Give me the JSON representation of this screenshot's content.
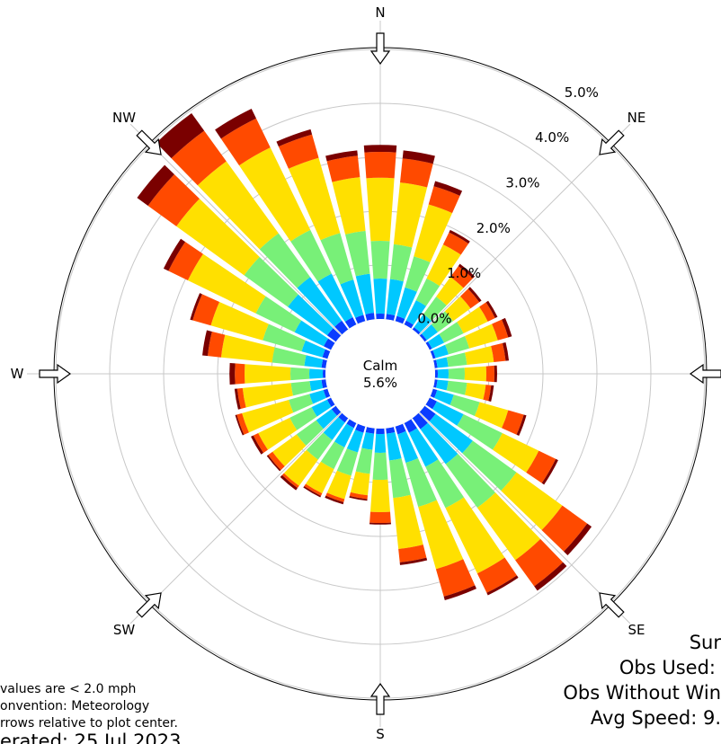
{
  "colors": {
    "bin0": "#0a3cff",
    "bin1": "#00c8ff",
    "bin2": "#78f078",
    "bin3": "#ffe000",
    "bin4": "#ff4a00",
    "bin5": "#7a0000",
    "circle": "#000000",
    "grid": "#c8c8c8",
    "arrow_fill": "#ffffff",
    "arrow_stroke": "#000000"
  },
  "directions": {
    "N": "N",
    "NE": "NE",
    "E": "",
    "SE": "SE",
    "S": "S",
    "SW": "SW",
    "W": "W",
    "NW": "NW"
  },
  "calm": {
    "label": "Calm",
    "value": "5.6%"
  },
  "footer_left": {
    "line1": "values are < 2.0 mph",
    "line2": "onvention: Meteorology",
    "line3": "rrows relative to plot center.",
    "line4": "erated: 25 Jul 2023"
  },
  "footer_right": {
    "line1": "Sur",
    "line2": "Obs Used:",
    "line3": "Obs Without Win",
    "line4": "Avg Speed: 9."
  },
  "chart_data": {
    "type": "windrose",
    "radial_tick_labels": [
      "0.0%",
      "1.0%",
      "2.0%",
      "3.0%",
      "4.0%",
      "5.0%"
    ],
    "radial_ticks": [
      0,
      1,
      2,
      3,
      4,
      5
    ],
    "radial_max": 5.5,
    "grid": true,
    "sector_width_deg": 10,
    "directions_deg": [
      0,
      10,
      20,
      30,
      40,
      50,
      60,
      70,
      80,
      90,
      100,
      110,
      120,
      130,
      140,
      150,
      160,
      170,
      180,
      190,
      200,
      210,
      220,
      230,
      240,
      250,
      260,
      270,
      280,
      290,
      300,
      310,
      320,
      330,
      340,
      350
    ],
    "cumulative_percent": [
      [
        0.1,
        0.75,
        1.45,
        2.62,
        3.1,
        3.23
      ],
      [
        0.1,
        0.75,
        1.4,
        2.55,
        3.0,
        3.15
      ],
      [
        0.1,
        0.65,
        1.25,
        2.25,
        2.6,
        2.7
      ],
      [
        0.08,
        0.5,
        0.95,
        1.65,
        1.9,
        1.95
      ],
      [
        0.05,
        0.35,
        0.75,
        1.2,
        1.45,
        1.5
      ],
      [
        0.05,
        0.3,
        0.65,
        1.05,
        1.25,
        1.3
      ],
      [
        0.05,
        0.3,
        0.7,
        1.2,
        1.35,
        1.4
      ],
      [
        0.05,
        0.3,
        0.7,
        1.25,
        1.45,
        1.52
      ],
      [
        0.05,
        0.25,
        0.6,
        1.1,
        1.32,
        1.38
      ],
      [
        0.05,
        0.25,
        0.55,
        0.95,
        1.1,
        1.15
      ],
      [
        0.05,
        0.25,
        0.6,
        0.95,
        1.05,
        1.1
      ],
      [
        0.08,
        0.4,
        0.9,
        1.45,
        1.75,
        1.8
      ],
      [
        0.15,
        0.7,
        1.5,
        2.25,
        2.6,
        2.65
      ],
      [
        0.25,
        1.1,
        2.1,
        3.15,
        3.72,
        3.82
      ],
      [
        0.25,
        1.05,
        2.05,
        3.25,
        3.85,
        3.95
      ],
      [
        0.2,
        0.9,
        1.75,
        3.1,
        3.5,
        3.55
      ],
      [
        0.15,
        0.7,
        1.55,
        2.75,
        3.28,
        3.35
      ],
      [
        0.1,
        0.6,
        1.3,
        2.25,
        2.5,
        2.55
      ],
      [
        0.1,
        0.45,
        0.95,
        1.55,
        1.75,
        1.78
      ],
      [
        0.1,
        0.4,
        0.85,
        1.25,
        1.32,
        1.35
      ],
      [
        0.12,
        0.5,
        0.95,
        1.4,
        1.46,
        1.5
      ],
      [
        0.1,
        0.5,
        0.95,
        1.45,
        1.5,
        1.53
      ],
      [
        0.1,
        0.5,
        0.95,
        1.55,
        1.6,
        1.65
      ],
      [
        0.1,
        0.45,
        0.9,
        1.45,
        1.55,
        1.58
      ],
      [
        0.08,
        0.4,
        0.85,
        1.5,
        1.6,
        1.65
      ],
      [
        0.08,
        0.35,
        0.75,
        1.65,
        1.75,
        1.78
      ],
      [
        0.08,
        0.3,
        0.65,
        1.55,
        1.65,
        1.7
      ],
      [
        0.05,
        0.3,
        0.65,
        1.5,
        1.68,
        1.78
      ],
      [
        0.08,
        0.4,
        1.0,
        1.95,
        2.2,
        2.3
      ],
      [
        0.1,
        0.5,
        1.25,
        2.25,
        2.6,
        2.65
      ],
      [
        0.15,
        0.75,
        1.55,
        2.95,
        3.35,
        3.45
      ],
      [
        0.2,
        1.1,
        2.1,
        3.65,
        4.3,
        4.55
      ],
      [
        0.2,
        1.2,
        2.2,
        3.85,
        4.55,
        4.95
      ],
      [
        0.15,
        1.05,
        1.95,
        3.65,
        4.25,
        4.45
      ],
      [
        0.12,
        0.8,
        1.7,
        3.15,
        3.6,
        3.7
      ],
      [
        0.12,
        0.85,
        1.65,
        2.65,
        3.05,
        3.15
      ]
    ]
  }
}
